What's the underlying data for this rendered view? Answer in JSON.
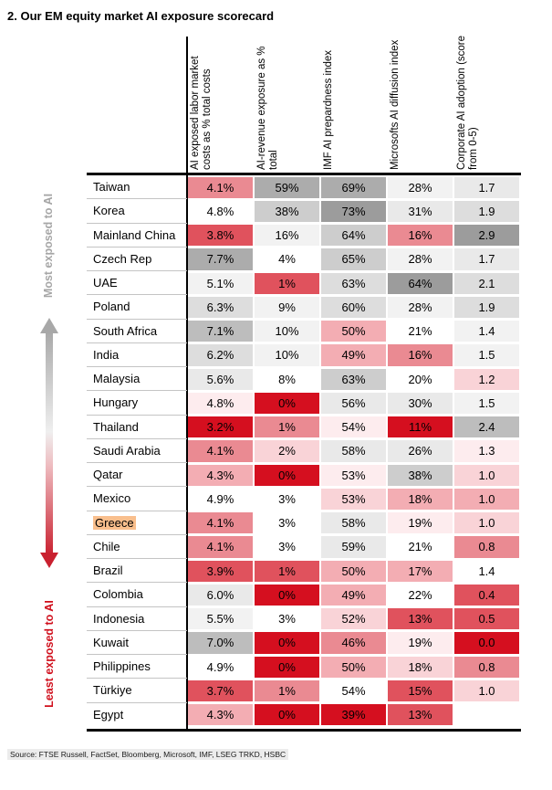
{
  "title": "2. Our EM equity market AI exposure scorecard",
  "source": "Source: FTSE Russell, FactSet, Bloomberg, Microsoft, IMF, LSEG TRKD, HSBC",
  "annotations": {
    "most": "Most exposed to AI",
    "least": "Least exposed to AI"
  },
  "columns": [
    "AI exposed labor market costs as % total costs",
    "AI-revenue exposure as % total",
    "IMF AI prepardness index",
    "Microsofts AI diffusion index",
    "Corporate AI adoption (score from 0-5)"
  ],
  "palette": {
    "R5": "#d50f1f",
    "R4": "#e0525d",
    "R3": "#ea8a92",
    "R2": "#f3adb3",
    "R1": "#f9d3d7",
    "R0": "#fdecee",
    "W": "#ffffff",
    "G1": "#f2f2f2",
    "G2": "#e9e9e9",
    "G3": "#dddddd",
    "G4": "#cdcdcd",
    "G5": "#bdbdbd",
    "G6": "#acacac",
    "G7": "#9c9c9c"
  },
  "arrow_colors": {
    "top": "#a8a8a8",
    "middle": "#efefef",
    "bottom": "#c9202f"
  },
  "highlight_color": "#f9bf8d",
  "rows": [
    {
      "country": "Taiwan",
      "highlight": false,
      "cells": [
        {
          "v": "4.1%",
          "c": "R3"
        },
        {
          "v": "59%",
          "c": "G6"
        },
        {
          "v": "69%",
          "c": "G6"
        },
        {
          "v": "28%",
          "c": "G1"
        },
        {
          "v": "1.7",
          "c": "G2"
        }
      ]
    },
    {
      "country": "Korea",
      "highlight": false,
      "cells": [
        {
          "v": "4.8%",
          "c": "W"
        },
        {
          "v": "38%",
          "c": "G4"
        },
        {
          "v": "73%",
          "c": "G7"
        },
        {
          "v": "31%",
          "c": "G2"
        },
        {
          "v": "1.9",
          "c": "G3"
        }
      ]
    },
    {
      "country": "Mainland China",
      "highlight": false,
      "cells": [
        {
          "v": "3.8%",
          "c": "R4"
        },
        {
          "v": "16%",
          "c": "G1"
        },
        {
          "v": "64%",
          "c": "G4"
        },
        {
          "v": "16%",
          "c": "R3"
        },
        {
          "v": "2.9",
          "c": "G7"
        }
      ]
    },
    {
      "country": "Czech Rep",
      "highlight": false,
      "cells": [
        {
          "v": "7.7%",
          "c": "G6"
        },
        {
          "v": "4%",
          "c": "W"
        },
        {
          "v": "65%",
          "c": "G4"
        },
        {
          "v": "28%",
          "c": "G1"
        },
        {
          "v": "1.7",
          "c": "G2"
        }
      ]
    },
    {
      "country": "UAE",
      "highlight": false,
      "cells": [
        {
          "v": "5.1%",
          "c": "G1"
        },
        {
          "v": "1%",
          "c": "R4"
        },
        {
          "v": "63%",
          "c": "G3"
        },
        {
          "v": "64%",
          "c": "G7"
        },
        {
          "v": "2.1",
          "c": "G3"
        }
      ]
    },
    {
      "country": "Poland",
      "highlight": false,
      "cells": [
        {
          "v": "6.3%",
          "c": "G3"
        },
        {
          "v": "9%",
          "c": "G1"
        },
        {
          "v": "60%",
          "c": "G3"
        },
        {
          "v": "28%",
          "c": "G1"
        },
        {
          "v": "1.9",
          "c": "G3"
        }
      ]
    },
    {
      "country": "South Africa",
      "highlight": false,
      "cells": [
        {
          "v": "7.1%",
          "c": "G5"
        },
        {
          "v": "10%",
          "c": "G1"
        },
        {
          "v": "50%",
          "c": "R2"
        },
        {
          "v": "21%",
          "c": "W"
        },
        {
          "v": "1.4",
          "c": "G1"
        }
      ]
    },
    {
      "country": "India",
      "highlight": false,
      "cells": [
        {
          "v": "6.2%",
          "c": "G3"
        },
        {
          "v": "10%",
          "c": "G1"
        },
        {
          "v": "49%",
          "c": "R2"
        },
        {
          "v": "16%",
          "c": "R3"
        },
        {
          "v": "1.5",
          "c": "G1"
        }
      ]
    },
    {
      "country": "Malaysia",
      "highlight": false,
      "cells": [
        {
          "v": "5.6%",
          "c": "G2"
        },
        {
          "v": "8%",
          "c": "W"
        },
        {
          "v": "63%",
          "c": "G4"
        },
        {
          "v": "20%",
          "c": "W"
        },
        {
          "v": "1.2",
          "c": "R1"
        }
      ]
    },
    {
      "country": "Hungary",
      "highlight": false,
      "cells": [
        {
          "v": "4.8%",
          "c": "R0"
        },
        {
          "v": "0%",
          "c": "R5"
        },
        {
          "v": "56%",
          "c": "G2"
        },
        {
          "v": "30%",
          "c": "G2"
        },
        {
          "v": "1.5",
          "c": "G1"
        }
      ]
    },
    {
      "country": "Thailand",
      "highlight": false,
      "cells": [
        {
          "v": "3.2%",
          "c": "R5"
        },
        {
          "v": "1%",
          "c": "R3"
        },
        {
          "v": "54%",
          "c": "R0"
        },
        {
          "v": "11%",
          "c": "R5"
        },
        {
          "v": "2.4",
          "c": "G5"
        }
      ]
    },
    {
      "country": "Saudi Arabia",
      "highlight": false,
      "cells": [
        {
          "v": "4.1%",
          "c": "R3"
        },
        {
          "v": "2%",
          "c": "R1"
        },
        {
          "v": "58%",
          "c": "G2"
        },
        {
          "v": "26%",
          "c": "G2"
        },
        {
          "v": "1.3",
          "c": "R0"
        }
      ]
    },
    {
      "country": "Qatar",
      "highlight": false,
      "cells": [
        {
          "v": "4.3%",
          "c": "R2"
        },
        {
          "v": "0%",
          "c": "R5"
        },
        {
          "v": "53%",
          "c": "R0"
        },
        {
          "v": "38%",
          "c": "G4"
        },
        {
          "v": "1.0",
          "c": "R1"
        }
      ]
    },
    {
      "country": "Mexico",
      "highlight": false,
      "cells": [
        {
          "v": "4.9%",
          "c": "W"
        },
        {
          "v": "3%",
          "c": "W"
        },
        {
          "v": "53%",
          "c": "R1"
        },
        {
          "v": "18%",
          "c": "R2"
        },
        {
          "v": "1.0",
          "c": "R2"
        }
      ]
    },
    {
      "country": "Greece",
      "highlight": true,
      "cells": [
        {
          "v": "4.1%",
          "c": "R3"
        },
        {
          "v": "3%",
          "c": "W"
        },
        {
          "v": "58%",
          "c": "G2"
        },
        {
          "v": "19%",
          "c": "R0"
        },
        {
          "v": "1.0",
          "c": "R1"
        }
      ]
    },
    {
      "country": "Chile",
      "highlight": false,
      "cells": [
        {
          "v": "4.1%",
          "c": "R3"
        },
        {
          "v": "3%",
          "c": "W"
        },
        {
          "v": "59%",
          "c": "G2"
        },
        {
          "v": "21%",
          "c": "W"
        },
        {
          "v": "0.8",
          "c": "R3"
        }
      ]
    },
    {
      "country": "Brazil",
      "highlight": false,
      "cells": [
        {
          "v": "3.9%",
          "c": "R4"
        },
        {
          "v": "1%",
          "c": "R4"
        },
        {
          "v": "50%",
          "c": "R2"
        },
        {
          "v": "17%",
          "c": "R2"
        },
        {
          "v": "1.4",
          "c": "W"
        }
      ]
    },
    {
      "country": "Colombia",
      "highlight": false,
      "cells": [
        {
          "v": "6.0%",
          "c": "G2"
        },
        {
          "v": "0%",
          "c": "R5"
        },
        {
          "v": "49%",
          "c": "R2"
        },
        {
          "v": "22%",
          "c": "W"
        },
        {
          "v": "0.4",
          "c": "R4"
        }
      ]
    },
    {
      "country": "Indonesia",
      "highlight": false,
      "cells": [
        {
          "v": "5.5%",
          "c": "G1"
        },
        {
          "v": "3%",
          "c": "W"
        },
        {
          "v": "52%",
          "c": "R1"
        },
        {
          "v": "13%",
          "c": "R4"
        },
        {
          "v": "0.5",
          "c": "R4"
        }
      ]
    },
    {
      "country": "Kuwait",
      "highlight": false,
      "cells": [
        {
          "v": "7.0%",
          "c": "G5"
        },
        {
          "v": "0%",
          "c": "R5"
        },
        {
          "v": "46%",
          "c": "R3"
        },
        {
          "v": "19%",
          "c": "R0"
        },
        {
          "v": "0.0",
          "c": "R5"
        }
      ]
    },
    {
      "country": "Philippines",
      "highlight": false,
      "cells": [
        {
          "v": "4.9%",
          "c": "W"
        },
        {
          "v": "0%",
          "c": "R5"
        },
        {
          "v": "50%",
          "c": "R2"
        },
        {
          "v": "18%",
          "c": "R1"
        },
        {
          "v": "0.8",
          "c": "R3"
        }
      ]
    },
    {
      "country": "Türkiye",
      "highlight": false,
      "cells": [
        {
          "v": "3.7%",
          "c": "R4"
        },
        {
          "v": "1%",
          "c": "R3"
        },
        {
          "v": "54%",
          "c": "W"
        },
        {
          "v": "15%",
          "c": "R4"
        },
        {
          "v": "1.0",
          "c": "R1"
        }
      ]
    },
    {
      "country": "Egypt",
      "highlight": false,
      "cells": [
        {
          "v": "4.3%",
          "c": "R2"
        },
        {
          "v": "0%",
          "c": "R5"
        },
        {
          "v": "39%",
          "c": "R5"
        },
        {
          "v": "13%",
          "c": "R4"
        },
        {
          "v": "",
          "c": "W"
        }
      ]
    }
  ],
  "chart_data": {
    "type": "heatmap",
    "title": "2. Our EM equity market AI exposure scorecard",
    "columns": [
      "AI exposed labor market costs as % total costs",
      "AI-revenue exposure as % total",
      "IMF AI prepardness index",
      "Microsofts AI diffusion index",
      "Corporate AI adoption (score from 0-5)"
    ],
    "units": [
      "%",
      "%",
      "%",
      "%",
      "score 0-5"
    ],
    "rows": [
      "Taiwan",
      "Korea",
      "Mainland China",
      "Czech Rep",
      "UAE",
      "Poland",
      "South Africa",
      "India",
      "Malaysia",
      "Hungary",
      "Thailand",
      "Saudi Arabia",
      "Qatar",
      "Mexico",
      "Greece",
      "Chile",
      "Brazil",
      "Colombia",
      "Indonesia",
      "Kuwait",
      "Philippines",
      "Türkiye",
      "Egypt"
    ],
    "values": [
      [
        4.1,
        59,
        69,
        28,
        1.7
      ],
      [
        4.8,
        38,
        73,
        31,
        1.9
      ],
      [
        3.8,
        16,
        64,
        16,
        2.9
      ],
      [
        7.7,
        4,
        65,
        28,
        1.7
      ],
      [
        5.1,
        1,
        63,
        64,
        2.1
      ],
      [
        6.3,
        9,
        60,
        28,
        1.9
      ],
      [
        7.1,
        10,
        50,
        21,
        1.4
      ],
      [
        6.2,
        10,
        49,
        16,
        1.5
      ],
      [
        5.6,
        8,
        63,
        20,
        1.2
      ],
      [
        4.8,
        0,
        56,
        30,
        1.5
      ],
      [
        3.2,
        1,
        54,
        11,
        2.4
      ],
      [
        4.1,
        2,
        58,
        26,
        1.3
      ],
      [
        4.3,
        0,
        53,
        38,
        1.0
      ],
      [
        4.9,
        3,
        53,
        18,
        1.0
      ],
      [
        4.1,
        3,
        58,
        19,
        1.0
      ],
      [
        4.1,
        3,
        59,
        21,
        0.8
      ],
      [
        3.9,
        1,
        50,
        17,
        1.4
      ],
      [
        6.0,
        0,
        49,
        22,
        0.4
      ],
      [
        5.5,
        3,
        52,
        13,
        0.5
      ],
      [
        7.0,
        0,
        46,
        19,
        0.0
      ],
      [
        4.9,
        0,
        50,
        18,
        0.8
      ],
      [
        3.7,
        1,
        54,
        15,
        1.0
      ],
      [
        4.3,
        0,
        39,
        13,
        null
      ]
    ],
    "rows_sorted_by": "exposure (most exposed at top, least exposed at bottom)",
    "highlighted_row": "Greece",
    "color_scale": "red = low/least exposed score, white/light = middle, dark gray = high/most exposed score",
    "legend_position": "none"
  }
}
